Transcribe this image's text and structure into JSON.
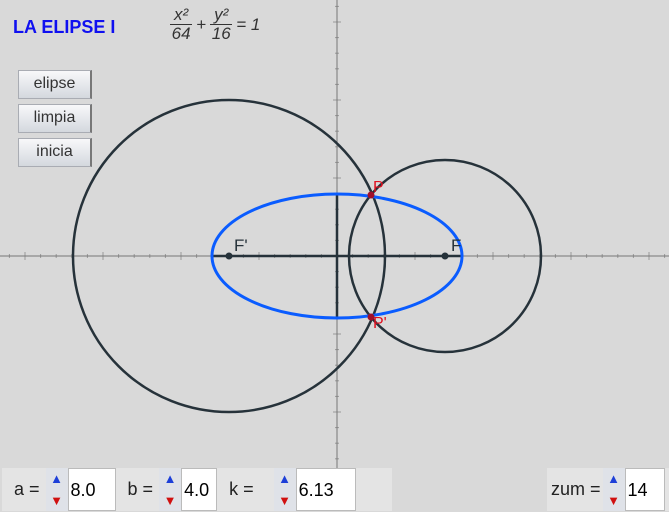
{
  "title": "LA ELIPSE I",
  "formula": {
    "x_num": "x²",
    "x_den": "64",
    "plus": "+",
    "y_num": "y²",
    "y_den": "16",
    "eq": "= 1"
  },
  "buttons": [
    "elipse",
    "limpia",
    "inicia"
  ],
  "labels": {
    "F": "F",
    "F_prime": "F'",
    "P": "P",
    "P_prime": "P'"
  },
  "params": {
    "a": {
      "label": "a =",
      "value": "8.0"
    },
    "b": {
      "label": "b =",
      "value": "4.0"
    },
    "k": {
      "label": "k =",
      "value": "6.13"
    },
    "zum": {
      "label": "zum =",
      "value": "14"
    }
  },
  "colors": {
    "title": "#1010f0",
    "ellipse": "#0a5cff",
    "circles": "#26323a",
    "points": "#e01020"
  }
}
